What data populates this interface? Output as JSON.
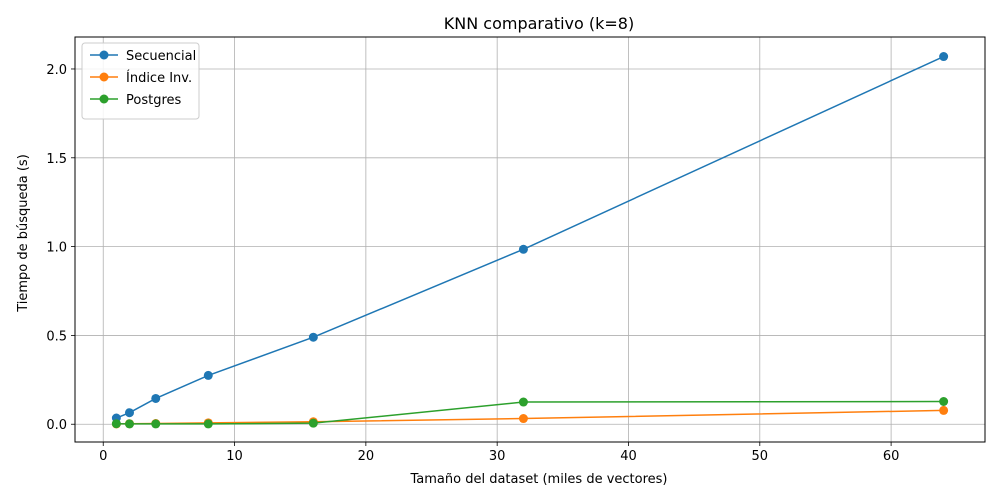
{
  "chart_data": {
    "type": "line",
    "title": "KNN comparativo (k=8)",
    "xlabel": "Tamaño del dataset (miles de vectores)",
    "ylabel": "Tiempo de búsqueda (s)",
    "xlim": [
      -2.15,
      67.15
    ],
    "ylim": [
      -0.1,
      2.18
    ],
    "xticks": [
      0,
      10,
      20,
      30,
      40,
      50,
      60
    ],
    "xtick_labels": [
      "0",
      "10",
      "20",
      "30",
      "40",
      "50",
      "60"
    ],
    "yticks": [
      0.0,
      0.5,
      1.0,
      1.5,
      2.0
    ],
    "ytick_labels": [
      "0.0",
      "0.5",
      "1.0",
      "1.5",
      "2.0"
    ],
    "grid": true,
    "legend_position": "top-left",
    "x": [
      1,
      2,
      4,
      8,
      16,
      32,
      64
    ],
    "series": [
      {
        "name": "Secuencial",
        "color": "#1f77b4",
        "values": [
          0.035,
          0.065,
          0.145,
          0.275,
          0.49,
          0.985,
          2.07
        ]
      },
      {
        "name": "Índice Inv.",
        "color": "#ff7f0e",
        "values": [
          0.002,
          0.003,
          0.004,
          0.008,
          0.014,
          0.032,
          0.078
        ]
      },
      {
        "name": "Postgres",
        "color": "#2ca02c",
        "values": [
          0.003,
          0.002,
          0.002,
          0.002,
          0.006,
          0.125,
          0.128
        ]
      }
    ]
  }
}
